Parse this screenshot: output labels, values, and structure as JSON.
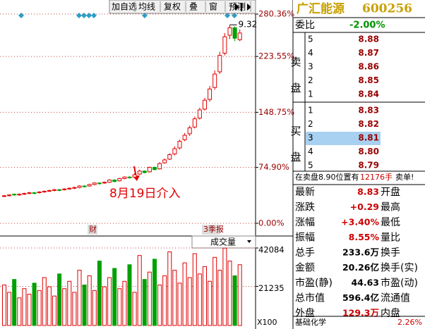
{
  "toolbar": {
    "buttons": [
      "加自选",
      "均线",
      "复权",
      "叠",
      "窗",
      "预测"
    ]
  },
  "chart_data": [
    {
      "type": "candlestick",
      "open": [
        36,
        37,
        39,
        38,
        39,
        40,
        41,
        41,
        42,
        43,
        44,
        45,
        45,
        46,
        47,
        48,
        50,
        50,
        52,
        54,
        54,
        55,
        58,
        57,
        60,
        62,
        62,
        66,
        70,
        69,
        75,
        73,
        81,
        86,
        93,
        101,
        112,
        120,
        129,
        141,
        153,
        166,
        182,
        203,
        228,
        252,
        262,
        246
      ],
      "high": [
        38,
        39,
        40,
        40,
        41,
        42,
        42,
        43,
        44,
        45,
        46,
        46,
        47,
        48,
        49,
        51,
        51,
        53,
        55,
        55,
        56,
        59,
        59,
        61,
        63,
        63,
        67,
        72,
        71,
        76,
        76,
        82,
        87,
        94,
        103,
        112,
        121,
        131,
        143,
        155,
        168,
        184,
        205,
        230,
        255,
        266,
        264,
        260
      ],
      "low": [
        35,
        36,
        37,
        37,
        38,
        39,
        39,
        40,
        41,
        42,
        43,
        43,
        44,
        45,
        46,
        47,
        48,
        49,
        51,
        52,
        53,
        54,
        55,
        56,
        59,
        60,
        61,
        65,
        67,
        68,
        71,
        72,
        80,
        85,
        91,
        99,
        110,
        117,
        127,
        139,
        151,
        163,
        179,
        200,
        225,
        247,
        244,
        244
      ],
      "close": [
        37,
        38,
        38,
        39,
        40,
        41,
        40,
        42,
        43,
        44,
        45,
        44,
        46,
        47,
        48,
        50,
        49,
        52,
        54,
        53,
        55,
        58,
        56,
        60,
        62,
        61,
        65,
        70,
        68,
        75,
        72,
        80,
        85,
        92,
        100,
        110,
        118,
        128,
        140,
        152,
        165,
        180,
        200,
        225,
        250,
        262,
        248,
        255
      ],
      "up_color": "#e00000",
      "down_color": "#00a000",
      "ylim": [
        0,
        280.36
      ],
      "yticks": [
        {
          "value": 0,
          "label": "0.00%"
        },
        {
          "value": 74.9,
          "label": "74.90%"
        },
        {
          "value": 148.75,
          "label": "148.75%"
        },
        {
          "value": 223.55,
          "label": "223.55%"
        },
        {
          "value": 280.36,
          "label": "280.36%"
        }
      ],
      "peak_label": "9.32",
      "annotation": "8月19日介入",
      "events": [
        "财",
        "3季报"
      ]
    },
    {
      "type": "bar",
      "title": "成交量",
      "values": [
        22000,
        18000,
        25000,
        15000,
        20000,
        17000,
        23000,
        19000,
        26000,
        21000,
        16000,
        28000,
        20000,
        24000,
        18000,
        30000,
        22000,
        27000,
        19000,
        35000,
        21000,
        26000,
        31000,
        20000,
        24000,
        33000,
        18000,
        38000,
        25000,
        29000,
        36000,
        22000,
        27000,
        40000,
        30000,
        23000,
        34000,
        26000,
        39000,
        28000,
        32000,
        24000,
        37000,
        30000,
        42000,
        35000,
        27000,
        33000
      ],
      "ylim": [
        0,
        42084
      ],
      "yticks": [
        21235,
        42084
      ],
      "unit_label": "X100"
    }
  ],
  "quote": {
    "name": "广汇能源",
    "code": "600256",
    "wei_bi_label": "委比",
    "wei_bi": "-2.00%",
    "sell_label": "卖盘",
    "buy_label": "买盘",
    "sell": [
      {
        "level": "5",
        "price": "8.88"
      },
      {
        "level": "4",
        "price": "8.87"
      },
      {
        "level": "3",
        "price": "8.86"
      },
      {
        "level": "2",
        "price": "8.85"
      },
      {
        "level": "1",
        "price": "8.84"
      }
    ],
    "buy": [
      {
        "level": "1",
        "price": "8.83"
      },
      {
        "level": "2",
        "price": "8.82"
      },
      {
        "level": "3",
        "price": "8.81"
      },
      {
        "level": "4",
        "price": "8.80"
      },
      {
        "level": "5",
        "price": "8.79"
      }
    ],
    "notice": [
      "在卖盘8.90位置有",
      "12176手",
      "卖单!"
    ],
    "stats": [
      [
        "最新",
        "8.83",
        "开盘"
      ],
      [
        "涨跌",
        "+0.29",
        "最高"
      ],
      [
        "涨幅",
        "+3.40%",
        "最低"
      ],
      [
        "振幅",
        "8.55%",
        "量比"
      ],
      [
        "总手",
        "233.6万",
        "换手"
      ],
      [
        "金额",
        "20.26亿",
        "换手(实)"
      ],
      [
        "市盈(静)",
        "44.63",
        "市盈(动)"
      ],
      [
        "总市值",
        "596.4亿",
        "流通值"
      ],
      [
        "外盘",
        "129.3万",
        "内盘"
      ]
    ],
    "sector": "基础化学",
    "sector_change": "2.26%"
  }
}
